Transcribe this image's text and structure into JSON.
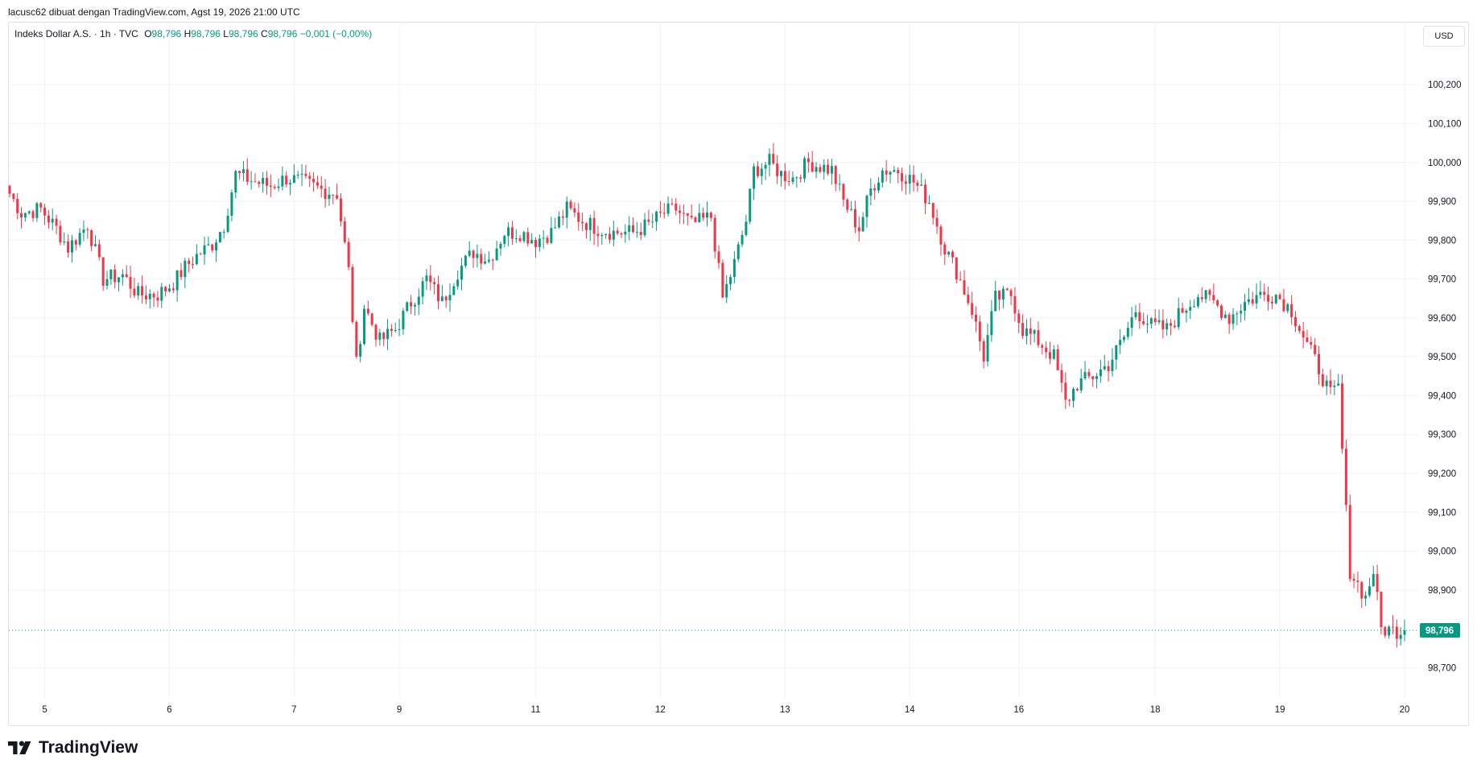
{
  "header": {
    "caption": "lacusc62 dibuat dengan TradingView.com, Agst 19, 2026 21:00 UTC"
  },
  "legend": {
    "symbol": "Indeks Dollar A.S. · 1h · TVC",
    "o_label": "O",
    "o_value": "98,796",
    "h_label": "H",
    "h_value": "98,796",
    "l_label": "L",
    "l_value": "98,796",
    "c_label": "C",
    "c_value": "98,796",
    "change": "−0,001 (−0,00%)"
  },
  "currency": "USD",
  "last_price_label": "98,796",
  "footer": {
    "brand": "TradingView",
    "logo_icon": "tradingview-logo-icon"
  },
  "colors": {
    "up": "#089981",
    "down": "#f23645",
    "grid": "#f0f3fa",
    "text": "#131722",
    "last_price_line": "#089981"
  },
  "chart_data": {
    "type": "candlestick",
    "title": "Indeks Dollar A.S.",
    "interval": "1h",
    "source": "TVC",
    "ylim": [
      98.62,
      100.36
    ],
    "y_ticks": [
      {
        "value": 100.2,
        "label": "100,200"
      },
      {
        "value": 100.1,
        "label": "100,100"
      },
      {
        "value": 100.0,
        "label": "100,000"
      },
      {
        "value": 99.9,
        "label": "99,900"
      },
      {
        "value": 99.8,
        "label": "99,800"
      },
      {
        "value": 99.7,
        "label": "99,700"
      },
      {
        "value": 99.6,
        "label": "99,600"
      },
      {
        "value": 99.5,
        "label": "99,500"
      },
      {
        "value": 99.4,
        "label": "99,400"
      },
      {
        "value": 99.3,
        "label": "99,300"
      },
      {
        "value": 99.2,
        "label": "99,200"
      },
      {
        "value": 99.1,
        "label": "99,100"
      },
      {
        "value": 99.0,
        "label": "99,000"
      },
      {
        "value": 98.9,
        "label": "98,900"
      },
      {
        "value": 98.7,
        "label": "98,700"
      }
    ],
    "x_ticks": [
      {
        "index": 9,
        "label": "5"
      },
      {
        "index": 41,
        "label": "6"
      },
      {
        "index": 73,
        "label": "7"
      },
      {
        "index": 100,
        "label": "9"
      },
      {
        "index": 135,
        "label": "11"
      },
      {
        "index": 167,
        "label": "12"
      },
      {
        "index": 199,
        "label": "13"
      },
      {
        "index": 231,
        "label": "14"
      },
      {
        "index": 259,
        "label": "16"
      },
      {
        "index": 294,
        "label": "18"
      },
      {
        "index": 326,
        "label": "19"
      },
      {
        "index": 358,
        "label": "20"
      }
    ],
    "bar_count": 359,
    "last_price": 98.796,
    "anchors": [
      [
        0,
        99.92
      ],
      [
        3,
        99.87
      ],
      [
        8,
        99.88
      ],
      [
        12,
        99.83
      ],
      [
        15,
        99.78
      ],
      [
        20,
        99.84
      ],
      [
        24,
        99.7
      ],
      [
        29,
        99.71
      ],
      [
        33,
        99.66
      ],
      [
        38,
        99.66
      ],
      [
        42,
        99.69
      ],
      [
        45,
        99.73
      ],
      [
        48,
        99.76
      ],
      [
        52,
        99.79
      ],
      [
        55,
        99.84
      ],
      [
        58,
        99.97
      ],
      [
        63,
        99.95
      ],
      [
        67,
        99.94
      ],
      [
        71,
        99.96
      ],
      [
        75,
        99.95
      ],
      [
        80,
        99.93
      ],
      [
        84,
        99.92
      ],
      [
        87,
        99.72
      ],
      [
        89,
        99.48
      ],
      [
        91,
        99.63
      ],
      [
        95,
        99.54
      ],
      [
        99,
        99.57
      ],
      [
        103,
        99.64
      ],
      [
        107,
        99.7
      ],
      [
        111,
        99.64
      ],
      [
        115,
        99.72
      ],
      [
        119,
        99.77
      ],
      [
        123,
        99.75
      ],
      [
        127,
        99.82
      ],
      [
        131,
        99.82
      ],
      [
        135,
        99.8
      ],
      [
        139,
        99.82
      ],
      [
        143,
        99.88
      ],
      [
        147,
        99.85
      ],
      [
        151,
        99.83
      ],
      [
        155,
        99.82
      ],
      [
        160,
        99.82
      ],
      [
        164,
        99.84
      ],
      [
        168,
        99.87
      ],
      [
        171,
        99.88
      ],
      [
        175,
        99.84
      ],
      [
        180,
        99.86
      ],
      [
        183,
        99.65
      ],
      [
        186,
        99.74
      ],
      [
        189,
        99.85
      ],
      [
        191,
        99.98
      ],
      [
        195,
        100.0
      ],
      [
        198,
        99.97
      ],
      [
        201,
        99.96
      ],
      [
        205,
        100.0
      ],
      [
        208,
        99.99
      ],
      [
        211,
        99.98
      ],
      [
        214,
        99.9
      ],
      [
        218,
        99.83
      ],
      [
        221,
        99.93
      ],
      [
        224,
        99.98
      ],
      [
        228,
        99.98
      ],
      [
        232,
        99.95
      ],
      [
        236,
        99.9
      ],
      [
        240,
        99.78
      ],
      [
        243,
        99.72
      ],
      [
        247,
        99.62
      ],
      [
        250,
        99.5
      ],
      [
        253,
        99.65
      ],
      [
        257,
        99.66
      ],
      [
        260,
        99.57
      ],
      [
        264,
        99.54
      ],
      [
        268,
        99.5
      ],
      [
        271,
        99.38
      ],
      [
        274,
        99.43
      ],
      [
        278,
        99.45
      ],
      [
        282,
        99.48
      ],
      [
        286,
        99.55
      ],
      [
        289,
        99.62
      ],
      [
        293,
        99.58
      ],
      [
        297,
        99.57
      ],
      [
        301,
        99.62
      ],
      [
        305,
        99.66
      ],
      [
        309,
        99.64
      ],
      [
        313,
        99.6
      ],
      [
        317,
        99.64
      ],
      [
        321,
        99.66
      ],
      [
        325,
        99.66
      ],
      [
        329,
        99.62
      ],
      [
        333,
        99.53
      ],
      [
        336,
        99.47
      ],
      [
        339,
        99.4
      ],
      [
        341,
        99.42
      ],
      [
        343,
        99.1
      ],
      [
        344,
        98.95
      ],
      [
        348,
        98.88
      ],
      [
        350,
        98.95
      ],
      [
        352,
        98.8
      ],
      [
        355,
        98.796
      ]
    ]
  }
}
